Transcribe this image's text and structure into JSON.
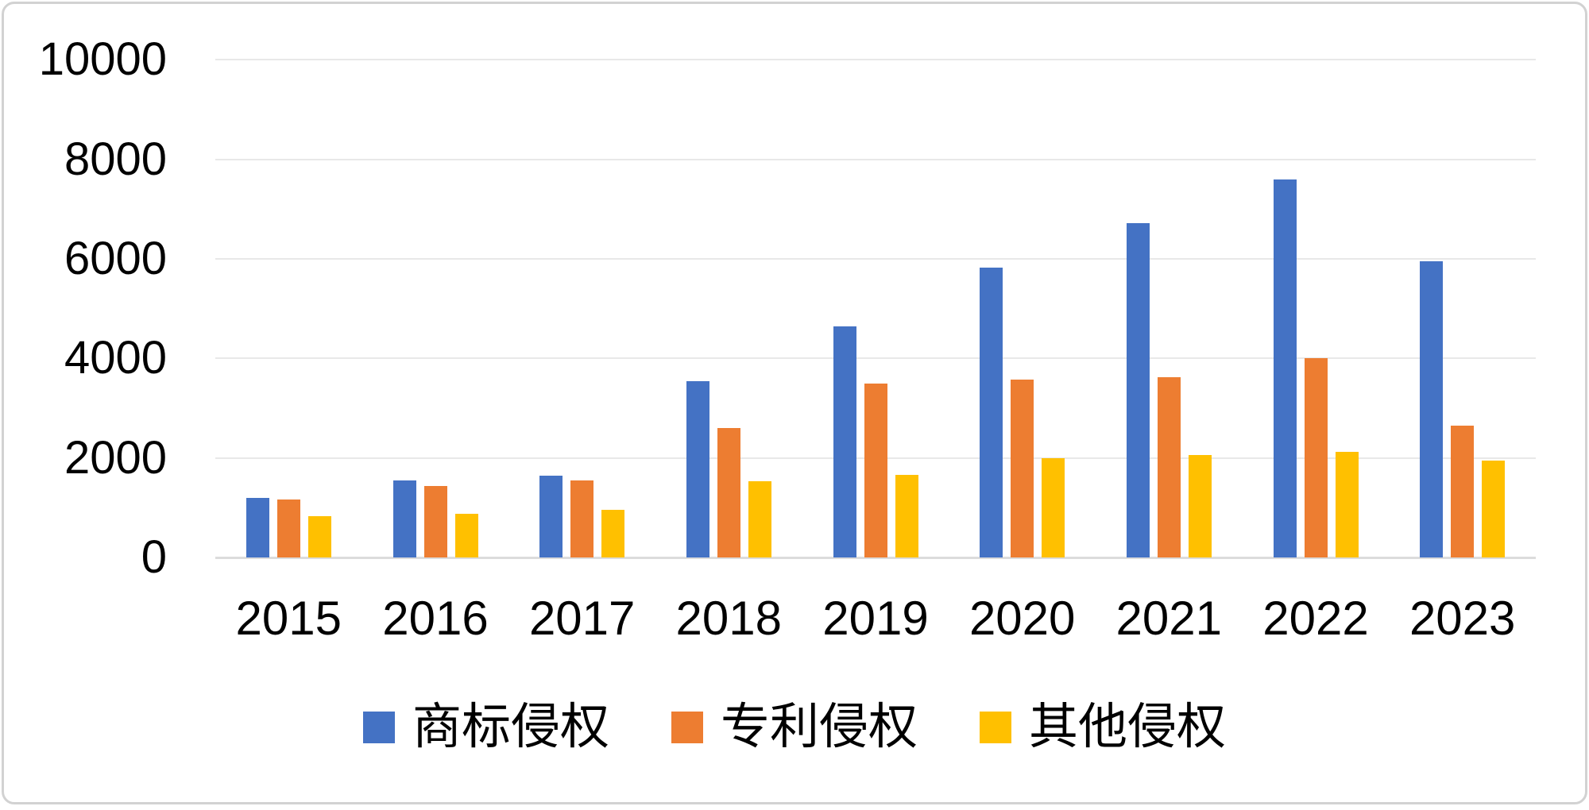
{
  "chart_data": {
    "type": "bar",
    "title": "",
    "xlabel": "",
    "ylabel": "",
    "categories": [
      "2015",
      "2016",
      "2017",
      "2018",
      "2019",
      "2020",
      "2021",
      "2022",
      "2023"
    ],
    "series": [
      {
        "name": "商标侵权",
        "color": "#4472C4",
        "values": [
          1200,
          1560,
          1650,
          3540,
          4650,
          5820,
          6720,
          7600,
          5950
        ]
      },
      {
        "name": "专利侵权",
        "color": "#ED7D31",
        "values": [
          1170,
          1440,
          1550,
          2610,
          3500,
          3570,
          3630,
          4010,
          2650
        ]
      },
      {
        "name": "其他侵权",
        "color": "#FFC000",
        "values": [
          830,
          890,
          960,
          1530,
          1670,
          2000,
          2060,
          2120,
          1950
        ]
      }
    ],
    "ylim": [
      0,
      10000
    ],
    "ytick_interval": 2000,
    "yticks": [
      "0",
      "2000",
      "4000",
      "6000",
      "8000",
      "10000"
    ],
    "grid": true,
    "gridline_color": "#e8e8e8",
    "axis_line_color": "#dcdcdc",
    "legend_position": "bottom"
  }
}
